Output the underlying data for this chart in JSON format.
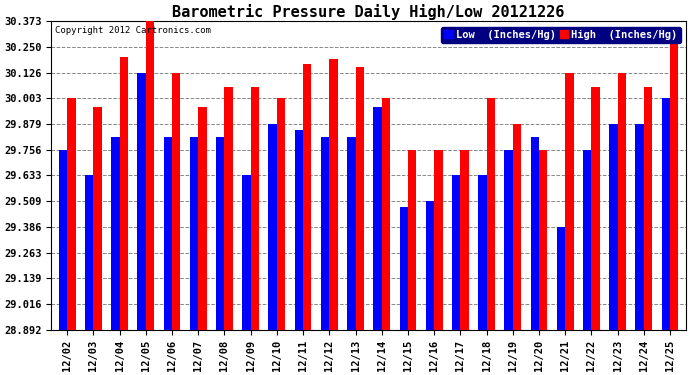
{
  "title": "Barometric Pressure Daily High/Low 20121226",
  "copyright": "Copyright 2012 Cartronics.com",
  "categories": [
    "12/02",
    "12/03",
    "12/04",
    "12/05",
    "12/06",
    "12/07",
    "12/08",
    "12/09",
    "12/10",
    "12/11",
    "12/12",
    "12/13",
    "12/14",
    "12/15",
    "12/16",
    "12/17",
    "12/18",
    "12/19",
    "12/20",
    "12/21",
    "12/22",
    "12/23",
    "12/24",
    "12/25"
  ],
  "low_values": [
    29.756,
    29.633,
    29.82,
    30.126,
    29.82,
    29.82,
    29.82,
    29.633,
    29.879,
    29.85,
    29.82,
    29.82,
    29.96,
    29.48,
    29.509,
    29.633,
    29.633,
    29.756,
    29.82,
    29.386,
    29.756,
    29.879,
    29.879,
    30.003
  ],
  "high_values": [
    30.003,
    29.96,
    30.2,
    30.373,
    30.126,
    29.96,
    30.06,
    30.06,
    30.003,
    30.17,
    30.19,
    30.155,
    30.003,
    29.756,
    29.756,
    29.756,
    30.003,
    29.879,
    29.756,
    30.126,
    30.06,
    30.126,
    30.06,
    30.303
  ],
  "low_color": "#0000ff",
  "high_color": "#ff0000",
  "bg_color": "#ffffff",
  "plot_bg_color": "#ffffff",
  "grid_color": "#888888",
  "yticks": [
    28.892,
    29.016,
    29.139,
    29.263,
    29.386,
    29.509,
    29.633,
    29.756,
    29.879,
    30.003,
    30.126,
    30.25,
    30.373
  ],
  "ymin": 28.892,
  "ymax": 30.373,
  "bar_bottom": 28.892,
  "title_fontsize": 11,
  "tick_fontsize": 7.5,
  "legend_fontsize": 7.5,
  "copyright_fontsize": 6.5,
  "bar_width": 0.32
}
